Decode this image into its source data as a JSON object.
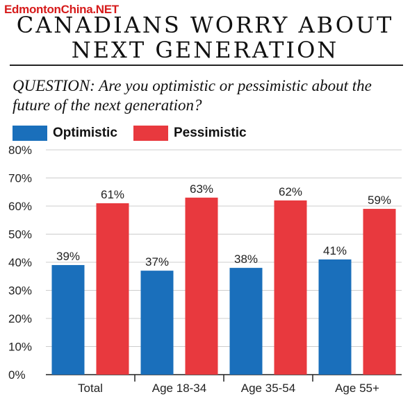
{
  "watermark": "EdmontonChina.NET",
  "title_line1": "CANADIANS WORRY ABOUT",
  "title_line2": "NEXT GENERATION",
  "question": "QUESTION: Are you optimistic or pessimistic about the future of the next generation?",
  "colors": {
    "optimistic": "#1a6fbb",
    "pessimistic": "#e8393e",
    "grid": "#cccccc",
    "axis": "#222222"
  },
  "chart_data": {
    "type": "bar",
    "title": "CANADIANS WORRY ABOUT NEXT GENERATION",
    "categories": [
      "Total",
      "Age 18-34",
      "Age 35-54",
      "Age 55+"
    ],
    "series": [
      {
        "name": "Optimistic",
        "values": [
          39,
          37,
          38,
          41
        ],
        "labels": [
          "39%",
          "37%",
          "38%",
          "41%"
        ]
      },
      {
        "name": "Pessimistic",
        "values": [
          61,
          63,
          62,
          59
        ],
        "labels": [
          "61%",
          "63%",
          "62%",
          "59%"
        ]
      }
    ],
    "ylim": [
      0,
      80
    ],
    "yticks": [
      0,
      10,
      20,
      30,
      40,
      50,
      60,
      70,
      80
    ],
    "ytick_labels": [
      "0%",
      "10%",
      "20%",
      "30%",
      "40%",
      "50%",
      "60%",
      "70%",
      "80%"
    ],
    "grid": true,
    "legend": "top-left"
  }
}
